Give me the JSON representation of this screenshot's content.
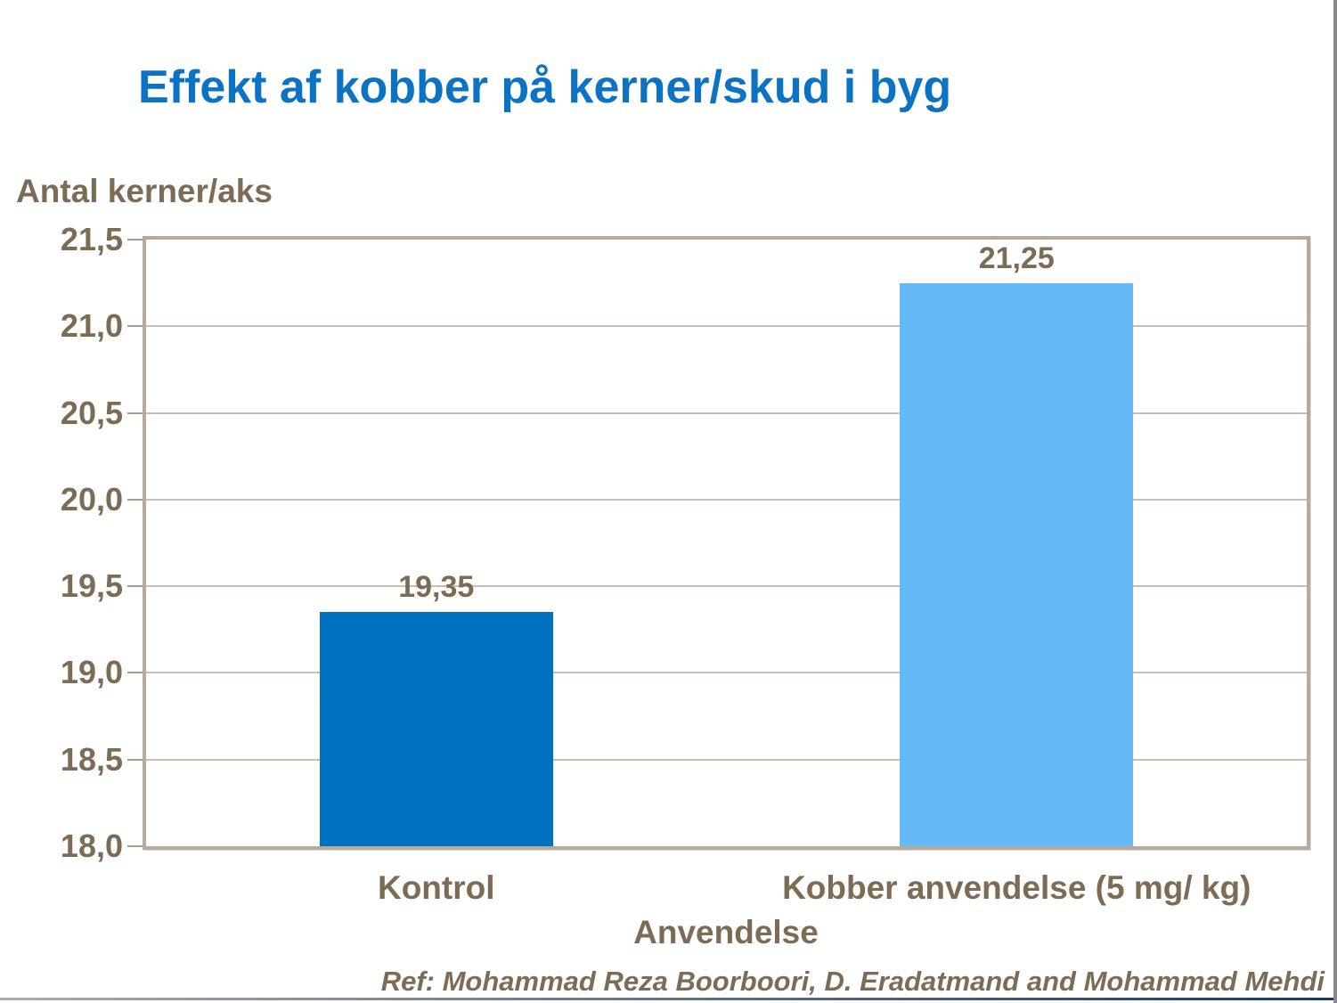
{
  "title": "Effekt af kobber på kerner/skud i byg",
  "y_axis_title": "Antal kerner/aks",
  "x_axis_title": "Anvendelse",
  "reference": "Ref: Mohammad Reza Boorboori, D. Eradatmand and Mohammad Mehdi",
  "chart_data": {
    "type": "bar",
    "title": "Effekt af kobber på kerner/skud i byg",
    "xlabel": "Anvendelse",
    "ylabel": "Antal kerner/aks",
    "categories": [
      "Kontrol",
      "Kobber anvendelse (5 mg/ kg)"
    ],
    "values": [
      19.35,
      21.25
    ],
    "value_labels": [
      "19,35",
      "21,25"
    ],
    "bar_colors": [
      "#0070C0",
      "#66B9F7"
    ],
    "ylim": [
      18.0,
      21.5
    ],
    "ytick_step": 0.5,
    "ytick_labels": [
      "18,0",
      "18,5",
      "19,0",
      "19,5",
      "20,0",
      "20,5",
      "21,0",
      "21,5"
    ],
    "grid": true,
    "legend": false
  },
  "colors": {
    "title_blue": "#0C72C4",
    "chart_text_brown": "#7C6C55",
    "plot_border_tan": "#B5AA9C",
    "gridline_tan": "#C9BFB1",
    "tick_mark_tan": "#A79C8D",
    "bar_control_blue": "#0070C0",
    "bar_copper_light_blue": "#66B9F7",
    "bottom_rule_left_gray": "#ABABAB",
    "bottom_rule_right_navy": "#1D3A5E",
    "right_edge_gray": "#8A8A8A"
  }
}
